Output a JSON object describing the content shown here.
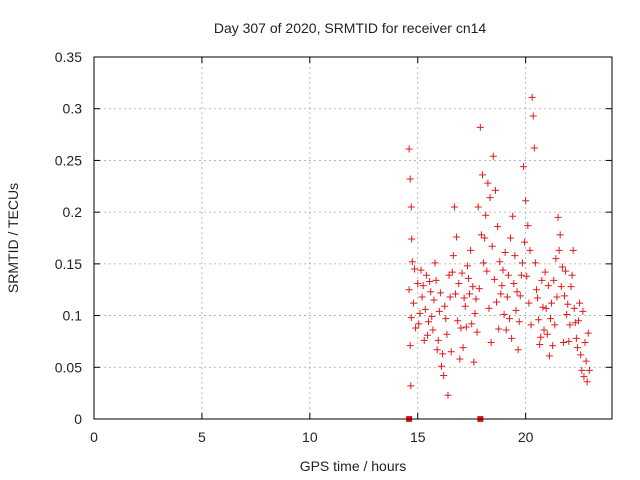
{
  "chart_data": {
    "type": "scatter",
    "title": "Day 307 of 2020, SRMTID for receiver cn14",
    "xlabel": "GPS time / hours",
    "ylabel": "SRMTID / TECUs",
    "xlim": [
      0,
      24
    ],
    "ylim": [
      0,
      0.35
    ],
    "xticks": [
      0,
      5,
      10,
      15,
      20
    ],
    "xtick_labels": [
      "0",
      "5",
      "10",
      "15",
      "20"
    ],
    "yticks": [
      0,
      0.05,
      0.1,
      0.15,
      0.2,
      0.25,
      0.3,
      0.35
    ],
    "ytick_labels": [
      "0",
      "0.05",
      "0.1",
      "0.15",
      "0.2",
      "0.25",
      "0.3",
      "0.35"
    ],
    "grid": true,
    "marker": "plus",
    "series": [
      {
        "name": "SRMTID",
        "color": "#e41a1c",
        "points": [
          [
            14.6,
            0.261
          ],
          [
            14.65,
            0.232
          ],
          [
            14.7,
            0.205
          ],
          [
            14.72,
            0.174
          ],
          [
            14.75,
            0.152
          ],
          [
            14.6,
            0.125
          ],
          [
            14.7,
            0.098
          ],
          [
            14.65,
            0.071
          ],
          [
            14.68,
            0.032
          ],
          [
            14.8,
            0.112
          ],
          [
            14.9,
            0.088
          ],
          [
            14.85,
            0.145
          ],
          [
            15.0,
            0.131
          ],
          [
            15.1,
            0.102
          ],
          [
            15.2,
            0.118
          ],
          [
            15.3,
            0.076
          ],
          [
            15.4,
            0.139
          ],
          [
            15.5,
            0.094
          ],
          [
            15.6,
            0.123
          ],
          [
            15.7,
            0.086
          ],
          [
            15.8,
            0.151
          ],
          [
            15.9,
            0.067
          ],
          [
            16.0,
            0.104
          ],
          [
            16.1,
            0.051
          ],
          [
            16.2,
            0.042
          ],
          [
            16.3,
            0.097
          ],
          [
            16.4,
            0.023
          ],
          [
            16.5,
            0.118
          ],
          [
            16.6,
            0.142
          ],
          [
            16.7,
            0.205
          ],
          [
            16.8,
            0.176
          ],
          [
            16.9,
            0.131
          ],
          [
            17.0,
            0.088
          ],
          [
            17.1,
            0.069
          ],
          [
            17.2,
            0.109
          ],
          [
            17.3,
            0.148
          ],
          [
            17.4,
            0.121
          ],
          [
            17.5,
            0.092
          ],
          [
            17.6,
            0.055
          ],
          [
            17.7,
            0.116
          ],
          [
            17.8,
            0.205
          ],
          [
            17.9,
            0.282
          ],
          [
            18.0,
            0.236
          ],
          [
            18.1,
            0.175
          ],
          [
            18.2,
            0.143
          ],
          [
            18.3,
            0.107
          ],
          [
            18.4,
            0.074
          ],
          [
            18.5,
            0.254
          ],
          [
            18.6,
            0.221
          ],
          [
            18.7,
            0.186
          ],
          [
            18.8,
            0.152
          ],
          [
            18.9,
            0.129
          ],
          [
            19.0,
            0.101
          ],
          [
            19.1,
            0.086
          ],
          [
            19.2,
            0.139
          ],
          [
            19.3,
            0.175
          ],
          [
            19.4,
            0.196
          ],
          [
            19.5,
            0.158
          ],
          [
            19.6,
            0.123
          ],
          [
            19.7,
            0.094
          ],
          [
            19.8,
            0.139
          ],
          [
            19.9,
            0.244
          ],
          [
            20.0,
            0.211
          ],
          [
            20.1,
            0.187
          ],
          [
            20.2,
            0.163
          ],
          [
            20.3,
            0.311
          ],
          [
            20.35,
            0.293
          ],
          [
            20.4,
            0.262
          ],
          [
            20.5,
            0.125
          ],
          [
            20.6,
            0.096
          ],
          [
            20.7,
            0.079
          ],
          [
            20.8,
            0.108
          ],
          [
            20.9,
            0.142
          ],
          [
            21.0,
            0.082
          ],
          [
            21.1,
            0.061
          ],
          [
            21.2,
            0.112
          ],
          [
            21.3,
            0.134
          ],
          [
            21.4,
            0.155
          ],
          [
            21.5,
            0.195
          ],
          [
            21.6,
            0.178
          ],
          [
            21.7,
            0.147
          ],
          [
            21.8,
            0.119
          ],
          [
            21.9,
            0.101
          ],
          [
            22.0,
            0.075
          ],
          [
            22.1,
            0.128
          ],
          [
            22.2,
            0.163
          ],
          [
            22.3,
            0.093
          ],
          [
            22.4,
            0.069
          ],
          [
            22.5,
            0.112
          ],
          [
            22.6,
            0.047
          ],
          [
            22.7,
            0.041
          ],
          [
            22.8,
            0.056
          ],
          [
            22.85,
            0.036
          ],
          [
            22.9,
            0.083
          ],
          [
            15.05,
            0.092
          ],
          [
            15.15,
            0.144
          ],
          [
            15.25,
            0.129
          ],
          [
            15.35,
            0.106
          ],
          [
            15.45,
            0.081
          ],
          [
            15.55,
            0.133
          ],
          [
            15.65,
            0.099
          ],
          [
            15.75,
            0.115
          ],
          [
            15.85,
            0.134
          ],
          [
            15.95,
            0.076
          ],
          [
            16.05,
            0.122
          ],
          [
            16.15,
            0.063
          ],
          [
            16.25,
            0.109
          ],
          [
            16.35,
            0.082
          ],
          [
            16.45,
            0.139
          ],
          [
            16.55,
            0.065
          ],
          [
            16.65,
            0.158
          ],
          [
            16.75,
            0.121
          ],
          [
            16.85,
            0.095
          ],
          [
            16.95,
            0.058
          ],
          [
            17.05,
            0.141
          ],
          [
            17.15,
            0.117
          ],
          [
            17.25,
            0.089
          ],
          [
            17.35,
            0.136
          ],
          [
            17.45,
            0.163
          ],
          [
            17.55,
            0.128
          ],
          [
            17.65,
            0.102
          ],
          [
            17.75,
            0.084
          ],
          [
            17.85,
            0.126
          ],
          [
            17.95,
            0.178
          ],
          [
            18.05,
            0.151
          ],
          [
            18.15,
            0.197
          ],
          [
            18.25,
            0.228
          ],
          [
            18.35,
            0.214
          ],
          [
            18.45,
            0.167
          ],
          [
            18.55,
            0.135
          ],
          [
            18.65,
            0.113
          ],
          [
            18.75,
            0.087
          ],
          [
            18.85,
            0.121
          ],
          [
            18.95,
            0.144
          ],
          [
            19.05,
            0.161
          ],
          [
            19.15,
            0.118
          ],
          [
            19.25,
            0.097
          ],
          [
            19.35,
            0.078
          ],
          [
            19.45,
            0.131
          ],
          [
            19.55,
            0.105
          ],
          [
            19.65,
            0.067
          ],
          [
            19.75,
            0.119
          ],
          [
            19.85,
            0.151
          ],
          [
            19.95,
            0.171
          ],
          [
            20.05,
            0.138
          ],
          [
            20.15,
            0.112
          ],
          [
            20.25,
            0.091
          ],
          [
            20.45,
            0.151
          ],
          [
            20.55,
            0.117
          ],
          [
            20.65,
            0.072
          ],
          [
            20.75,
            0.134
          ],
          [
            20.85,
            0.086
          ],
          [
            20.95,
            0.107
          ],
          [
            21.05,
            0.129
          ],
          [
            21.15,
            0.097
          ],
          [
            21.25,
            0.071
          ],
          [
            21.35,
            0.091
          ],
          [
            21.45,
            0.118
          ],
          [
            21.55,
            0.163
          ],
          [
            21.65,
            0.128
          ],
          [
            21.75,
            0.074
          ],
          [
            21.85,
            0.143
          ],
          [
            21.95,
            0.111
          ],
          [
            22.05,
            0.091
          ],
          [
            22.15,
            0.139
          ],
          [
            22.25,
            0.107
          ],
          [
            22.35,
            0.078
          ],
          [
            22.45,
            0.095
          ],
          [
            22.55,
            0.062
          ],
          [
            22.65,
            0.104
          ],
          [
            22.75,
            0.074
          ],
          [
            22.95,
            0.047
          ]
        ]
      }
    ],
    "baseline_markers": [
      14.6,
      17.9
    ]
  }
}
